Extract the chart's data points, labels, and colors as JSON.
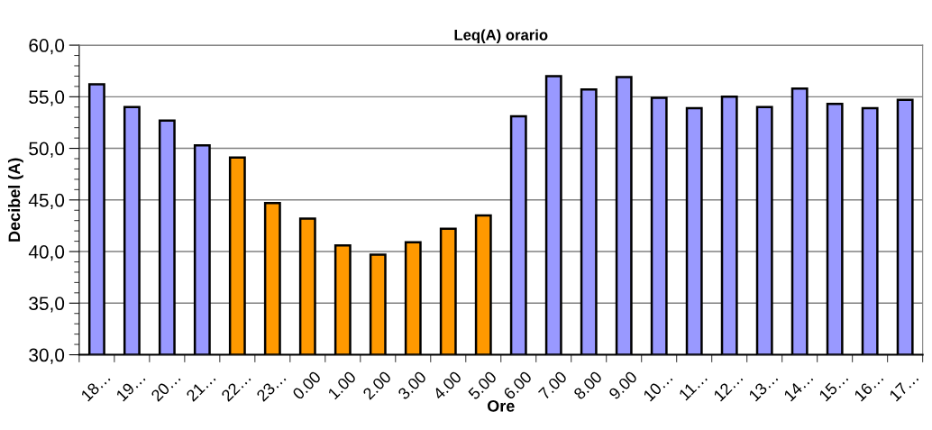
{
  "chart_data": {
    "type": "bar",
    "title": "Leq(A) orario",
    "xlabel": "Ore",
    "ylabel": "Decibel (A)",
    "categories": [
      "18…",
      "19…",
      "20…",
      "21…",
      "22…",
      "23…",
      "0.00",
      "1.00",
      "2.00",
      "3.00",
      "4.00",
      "5.00",
      "6.00",
      "7.00",
      "8.00",
      "9.00",
      "10…",
      "11…",
      "12…",
      "13…",
      "14…",
      "15…",
      "16…",
      "17…"
    ],
    "values": [
      56.2,
      54.0,
      52.7,
      50.3,
      49.1,
      44.7,
      43.2,
      40.6,
      39.7,
      40.9,
      42.2,
      43.5,
      53.1,
      57.0,
      55.7,
      56.9,
      54.9,
      53.9,
      55.0,
      54.0,
      55.8,
      54.3,
      53.9,
      54.7
    ],
    "colors": [
      "#9999ff",
      "#9999ff",
      "#9999ff",
      "#9999ff",
      "#ff9900",
      "#ff9900",
      "#ff9900",
      "#ff9900",
      "#ff9900",
      "#ff9900",
      "#ff9900",
      "#ff9900",
      "#9999ff",
      "#9999ff",
      "#9999ff",
      "#9999ff",
      "#9999ff",
      "#9999ff",
      "#9999ff",
      "#9999ff",
      "#9999ff",
      "#9999ff",
      "#9999ff",
      "#9999ff"
    ],
    "ylim": [
      30,
      60
    ],
    "yticks": [
      {
        "value": 30,
        "label": "30,0"
      },
      {
        "value": 31,
        "label": null
      },
      {
        "value": 32,
        "label": null
      },
      {
        "value": 33,
        "label": null
      },
      {
        "value": 34,
        "label": null
      },
      {
        "value": 35,
        "label": "35,0"
      },
      {
        "value": 36,
        "label": null
      },
      {
        "value": 37,
        "label": null
      },
      {
        "value": 38,
        "label": null
      },
      {
        "value": 39,
        "label": null
      },
      {
        "value": 40,
        "label": "40,0"
      },
      {
        "value": 41,
        "label": null
      },
      {
        "value": 42,
        "label": null
      },
      {
        "value": 43,
        "label": null
      },
      {
        "value": 44,
        "label": null
      },
      {
        "value": 45,
        "label": "45,0"
      },
      {
        "value": 46,
        "label": null
      },
      {
        "value": 47,
        "label": null
      },
      {
        "value": 48,
        "label": null
      },
      {
        "value": 49,
        "label": null
      },
      {
        "value": 50,
        "label": "50,0"
      },
      {
        "value": 51,
        "label": null
      },
      {
        "value": 52,
        "label": null
      },
      {
        "value": 53,
        "label": null
      },
      {
        "value": 54,
        "label": null
      },
      {
        "value": 55,
        "label": "55,0"
      },
      {
        "value": 56,
        "label": null
      },
      {
        "value": 57,
        "label": null
      },
      {
        "value": 58,
        "label": null
      },
      {
        "value": 59,
        "label": null
      },
      {
        "value": 60,
        "label": "60,0"
      }
    ],
    "grid": "y"
  }
}
